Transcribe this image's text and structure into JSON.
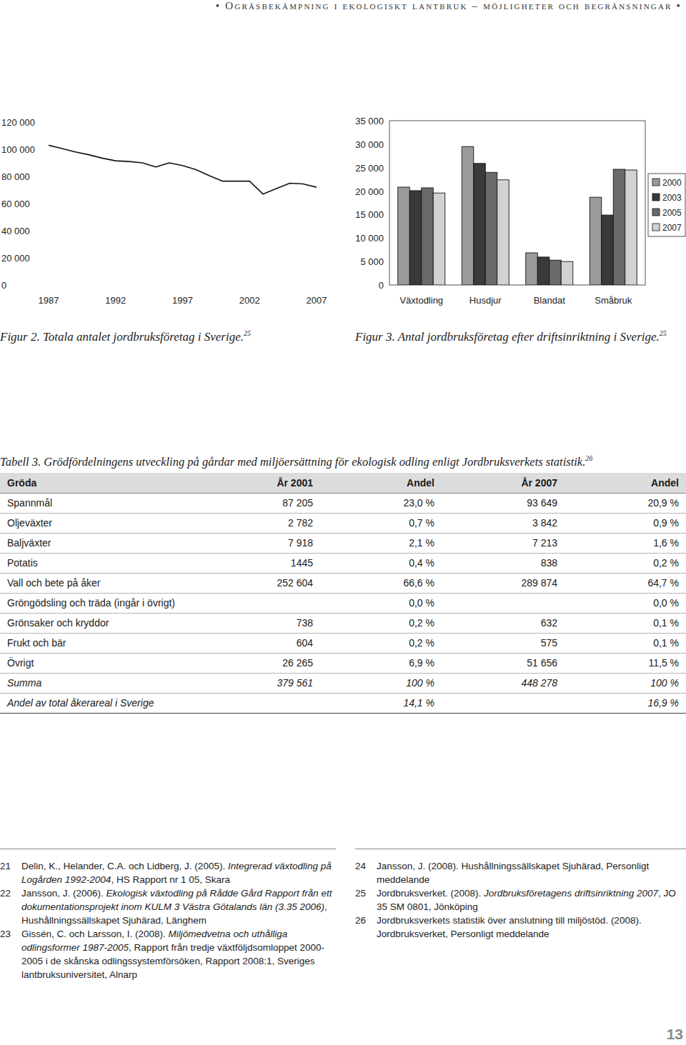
{
  "header": {
    "running_title": "• Ogräsbekämpning i ekologiskt lantbruk – möjligheter och begränsningar •"
  },
  "chart_data": [
    {
      "type": "line",
      "title": "Figur 2. Totala antalet jordbruksföretag i Sverige.",
      "title_note": "25",
      "x": [
        1987,
        1988,
        1989,
        1990,
        1991,
        1992,
        1993,
        1994,
        1995,
        1996,
        1997,
        1998,
        1999,
        2000,
        2001,
        2002,
        2003,
        2004,
        2005,
        2006,
        2007
      ],
      "values": [
        103000,
        100500,
        98000,
        96000,
        93500,
        91500,
        91000,
        90000,
        87000,
        90000,
        88000,
        85000,
        80500,
        76500,
        76500,
        76500,
        67000,
        71000,
        75000,
        74500,
        72000
      ],
      "color": "#111111",
      "xlim": [
        1987,
        2007
      ],
      "xticks": [
        1987,
        1992,
        1997,
        2002,
        2007
      ],
      "ylim": [
        0,
        120000
      ],
      "yticks": [
        0,
        {
          "value": 20000,
          "label": "20 000"
        },
        {
          "value": 40000,
          "label": "40 000"
        },
        {
          "value": 60000,
          "label": "60 000"
        },
        {
          "value": 80000,
          "label": "80 000"
        },
        {
          "value": 100000,
          "label": "100 000"
        },
        {
          "value": 120000,
          "label": "120 000"
        }
      ],
      "grid": false
    },
    {
      "type": "bar",
      "title": "Figur 3. Antal jordbruksföretag efter driftsinriktning i Sverige.",
      "title_note": "25",
      "categories": [
        "Växtodling",
        "Husdjur",
        "Blandat",
        "Småbruk"
      ],
      "series": [
        {
          "name": "2000",
          "color": "#9a9a9a",
          "values": [
            20850,
            29500,
            6850,
            18700
          ]
        },
        {
          "name": "2003",
          "color": "#3a3a3a",
          "values": [
            20100,
            25900,
            5950,
            14900
          ]
        },
        {
          "name": "2005",
          "color": "#6a6a6a",
          "values": [
            20700,
            24000,
            5300,
            24650
          ]
        },
        {
          "name": "2007",
          "color": "#d2d2d2",
          "values": [
            19600,
            22400,
            5000,
            24500
          ]
        }
      ],
      "ylim": [
        0,
        35000
      ],
      "yticks": [
        0,
        {
          "value": 5000,
          "label": "5 000"
        },
        {
          "value": 10000,
          "label": "10 000"
        },
        {
          "value": 15000,
          "label": "15 000"
        },
        {
          "value": 20000,
          "label": "20 000"
        },
        {
          "value": 25000,
          "label": "25 000"
        },
        {
          "value": 30000,
          "label": "30 000"
        },
        {
          "value": 35000,
          "label": "35 000"
        }
      ],
      "legend": "right",
      "grid": false
    }
  ],
  "table": {
    "caption": "Tabell 3. Grödfördelningens utveckling på gårdar med miljöersättning för ekologisk odling enligt Jordbruksverkets statistik.",
    "caption_note": "26",
    "header": [
      "Gröda",
      "År 2001",
      "Andel",
      "År 2007",
      "Andel"
    ],
    "rows": [
      [
        "Spannmål",
        "87 205",
        "23,0 %",
        "93 649",
        "20,9 %"
      ],
      [
        "Oljeväxter",
        "2 782",
        "0,7 %",
        "3 842",
        "0,9 %"
      ],
      [
        "Baljväxter",
        "7 918",
        "2,1 %",
        "7 213",
        "1,6 %"
      ],
      [
        "Potatis",
        "1445",
        "0,4 %",
        "838",
        "0,2 %"
      ],
      [
        "Vall och bete på åker",
        "252 604",
        "66,6 %",
        "289 874",
        "64,7 %"
      ],
      [
        "Gröngödsling och träda (ingår i övrigt)",
        null,
        "0,0 %",
        null,
        "0,0 %"
      ],
      [
        "Grönsaker och kryddor",
        "738",
        "0,2 %",
        "632",
        "0,1 %"
      ],
      [
        "Frukt och bär",
        "604",
        "0,2 %",
        "575",
        "0,1 %"
      ],
      [
        "Övrigt",
        "26 265",
        "6,9 %",
        "51 656",
        "11,5 %"
      ],
      [
        "Summa",
        "379 561",
        "100 %",
        "448 278",
        "100 %"
      ],
      [
        "Andel av total åkerareal i Sverige",
        null,
        "14,1 %",
        null,
        "16,9 %"
      ]
    ]
  },
  "references": [
    {
      "number": "21",
      "segments": [
        {
          "text": "Delin, K., Helander, C.A. och Lidberg, J. (2005). ",
          "italic": false
        },
        {
          "text": "Integrerad växtodling på Logården 1992-2004",
          "italic": true
        },
        {
          "text": ", HS Rapport nr 1 05, Skara",
          "italic": false
        }
      ]
    },
    {
      "number": "22",
      "segments": [
        {
          "text": "Jansson, J. (2006). ",
          "italic": false
        },
        {
          "text": "Ekologisk växtodling på Rådde Gård Rapport från ett dokumentationsprojekt inom KULM 3 Västra Götalands län (3.35 2006)",
          "italic": true
        },
        {
          "text": ", Hushållningssällskapet Sjuhärad, Länghem",
          "italic": false
        }
      ]
    },
    {
      "number": "23",
      "segments": [
        {
          "text": "Gissén, C. och Larsson, I. (2008). ",
          "italic": false
        },
        {
          "text": "Miljömedvetna och uthålliga odlingsformer 1987-2005",
          "italic": true
        },
        {
          "text": ", Rapport från tredje växtföljdsomloppet 2000-2005 i de skånska odlingssystemförsöken, Rapport 2008:1, Sveriges lantbruksuniversitet, Alnarp",
          "italic": false
        }
      ]
    },
    {
      "number": "24",
      "segments": [
        {
          "text": "Jansson, J. (2008). Hushållningssällskapet Sjuhärad, Personligt meddelande",
          "italic": false
        }
      ]
    },
    {
      "number": "25",
      "segments": [
        {
          "text": "Jordbruksverket. (2008). ",
          "italic": false
        },
        {
          "text": "Jordbruksföretagens driftsinriktning 2007",
          "italic": true
        },
        {
          "text": ", JO 35 SM 0801, Jönköping",
          "italic": false
        }
      ]
    },
    {
      "number": "26",
      "segments": [
        {
          "text": "Jordbruksverkets statistik över anslutning till miljöstöd. (2008). Jordbruksverket, Personligt meddelande",
          "italic": false
        }
      ]
    }
  ],
  "page_number": "13"
}
